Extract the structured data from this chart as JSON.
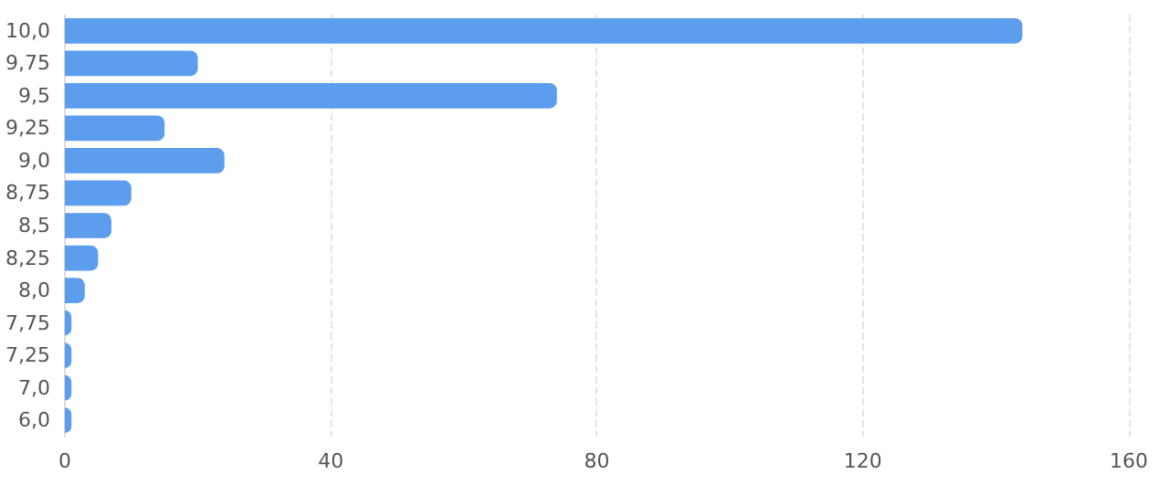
{
  "chart_data": {
    "type": "bar",
    "orientation": "horizontal",
    "categories": [
      "10,0",
      "9,75",
      "9,5",
      "9,25",
      "9,0",
      "8,75",
      "8,5",
      "8,25",
      "8,0",
      "7,75",
      "7,25",
      "7,0",
      "6,0"
    ],
    "values": [
      144,
      20,
      74,
      15,
      24,
      10,
      7,
      5,
      3,
      1,
      1,
      1,
      1
    ],
    "color": "#5c9ded",
    "xlim": [
      0,
      160
    ],
    "xticks": [
      0,
      40,
      80,
      120,
      160
    ],
    "grid": "x"
  }
}
